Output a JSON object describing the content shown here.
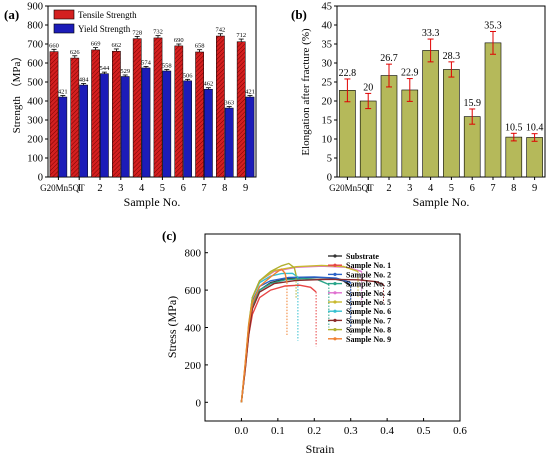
{
  "panels": {
    "a": "(a)",
    "b": "(b)",
    "c": "(c)"
  },
  "colors": {
    "tensile": "#d42020",
    "yield": "#1c1cb8",
    "elongation": "#b5b95a",
    "errorbar": "#e00000"
  },
  "chart_data": [
    {
      "type": "bar",
      "panel": "(a)",
      "categories": [
        "G20Mn5QT",
        "1",
        "2",
        "3",
        "4",
        "5",
        "6",
        "7",
        "8",
        "9"
      ],
      "series": [
        {
          "name": "Tensile Strength",
          "values": [
            660,
            626,
            669,
            662,
            728,
            732,
            690,
            658,
            742,
            712
          ],
          "errors": [
            12,
            12,
            12,
            12,
            12,
            12,
            10,
            12,
            12,
            14
          ]
        },
        {
          "name": "Yield Strength",
          "values": [
            421,
            484,
            544,
            529,
            574,
            558,
            506,
            462,
            363,
            421
          ],
          "errors": [
            8,
            8,
            8,
            8,
            8,
            8,
            8,
            8,
            8,
            8
          ]
        }
      ],
      "data_labels": {
        "tensile": [
          "660",
          "626",
          "669",
          "662",
          "728",
          "732",
          "690",
          "658",
          "742",
          "712"
        ],
        "yield": [
          "421",
          "484",
          "544",
          "529",
          "574",
          "558",
          "506",
          "462",
          "363",
          "421"
        ]
      },
      "xlabel": "Sample No.",
      "ylabel": "Strength （MPa）",
      "ylim": [
        0,
        900
      ],
      "yticks": [
        0,
        100,
        200,
        300,
        400,
        500,
        600,
        700,
        800,
        900
      ],
      "legend": "top-left"
    },
    {
      "type": "bar",
      "panel": "(b)",
      "categories": [
        "G20Mn5QT",
        "1",
        "2",
        "3",
        "4",
        "5",
        "6",
        "7",
        "8",
        "9"
      ],
      "values": [
        22.8,
        20,
        26.7,
        22.9,
        33.3,
        28.3,
        15.9,
        35.3,
        10.5,
        10.4
      ],
      "errors": [
        3.0,
        2.0,
        3.0,
        3.0,
        3.0,
        2.0,
        2.0,
        3.0,
        1.0,
        1.0
      ],
      "data_labels": [
        "22.8",
        "20",
        "26.7",
        "22.9",
        "33.3",
        "28.3",
        "15.9",
        "35.3",
        "10.5",
        "10.4"
      ],
      "xlabel": "Sample No.",
      "ylabel": "Elongation after fracture (%)",
      "ylim": [
        0,
        45
      ],
      "yticks": [
        0,
        5,
        10,
        15,
        20,
        25,
        30,
        35,
        40,
        45
      ]
    },
    {
      "type": "line",
      "panel": "(c)",
      "xlabel": "Strain",
      "ylabel": "Stress (MPa)",
      "xlim": [
        -0.1,
        0.6
      ],
      "ylim": [
        -100,
        900
      ],
      "xticks": [
        "0.0",
        "0.1",
        "0.2",
        "0.3",
        "0.4",
        "0.5",
        "0.6"
      ],
      "yticks": [
        "0",
        "200",
        "400",
        "600",
        "800"
      ],
      "legend": "top-right",
      "series": [
        {
          "name": "Substrate",
          "color": "#333333",
          "points": [
            [
              0,
              0
            ],
            [
              0.01,
              180
            ],
            [
              0.02,
              380
            ],
            [
              0.03,
              520
            ],
            [
              0.05,
              600
            ],
            [
              0.08,
              640
            ],
            [
              0.12,
              660
            ],
            [
              0.18,
              668
            ],
            [
              0.24,
              665
            ],
            [
              0.28,
              650
            ],
            [
              0.3,
              620
            ]
          ],
          "fracture": [
            0.3,
            360
          ]
        },
        {
          "name": "Sample No. 1",
          "color": "#e84545",
          "points": [
            [
              0,
              0
            ],
            [
              0.01,
              170
            ],
            [
              0.02,
              360
            ],
            [
              0.03,
              470
            ],
            [
              0.05,
              560
            ],
            [
              0.08,
              600
            ],
            [
              0.12,
              622
            ],
            [
              0.16,
              626
            ],
            [
              0.19,
              615
            ],
            [
              0.205,
              590
            ]
          ],
          "fracture": [
            0.205,
            300
          ]
        },
        {
          "name": "Sample No. 2",
          "color": "#2a62c8",
          "points": [
            [
              0,
              0
            ],
            [
              0.01,
              180
            ],
            [
              0.02,
              390
            ],
            [
              0.03,
              540
            ],
            [
              0.05,
              620
            ],
            [
              0.08,
              650
            ],
            [
              0.13,
              668
            ],
            [
              0.2,
              670
            ],
            [
              0.26,
              664
            ],
            [
              0.3,
              640
            ]
          ],
          "fracture": [
            0.3,
            400
          ]
        },
        {
          "name": "Sample No. 3",
          "color": "#2aa58a",
          "points": [
            [
              0,
              0
            ],
            [
              0.01,
              180
            ],
            [
              0.02,
              380
            ],
            [
              0.03,
              520
            ],
            [
              0.05,
              600
            ],
            [
              0.08,
              635
            ],
            [
              0.12,
              655
            ],
            [
              0.17,
              662
            ],
            [
              0.21,
              655
            ],
            [
              0.24,
              630
            ]
          ],
          "fracture": [
            0.24,
            400
          ]
        },
        {
          "name": "Sample No. 4",
          "color": "#e070d0",
          "points": [
            [
              0,
              0
            ],
            [
              0.01,
              190
            ],
            [
              0.02,
              400
            ],
            [
              0.03,
              560
            ],
            [
              0.05,
              650
            ],
            [
              0.09,
              700
            ],
            [
              0.15,
              722
            ],
            [
              0.22,
              728
            ],
            [
              0.29,
              722
            ],
            [
              0.33,
              700
            ]
          ],
          "fracture": [
            0.33,
            520
          ]
        },
        {
          "name": "Sample No. 5",
          "color": "#c9b92e",
          "points": [
            [
              0,
              0
            ],
            [
              0.01,
              190
            ],
            [
              0.02,
              410
            ],
            [
              0.03,
              560
            ],
            [
              0.05,
              650
            ],
            [
              0.09,
              705
            ],
            [
              0.15,
              725
            ],
            [
              0.22,
              732
            ],
            [
              0.28,
              726
            ],
            [
              0.32,
              700
            ]
          ],
          "fracture": [
            0.32,
            560
          ]
        },
        {
          "name": "Sample No. 6",
          "color": "#35c0d0",
          "points": [
            [
              0,
              0
            ],
            [
              0.01,
              190
            ],
            [
              0.02,
              400
            ],
            [
              0.03,
              560
            ],
            [
              0.05,
              640
            ],
            [
              0.08,
              675
            ],
            [
              0.11,
              688
            ],
            [
              0.14,
              690
            ],
            [
              0.155,
              670
            ]
          ],
          "fracture": [
            0.155,
            330
          ]
        },
        {
          "name": "Sample No. 7",
          "color": "#8b2a2a",
          "points": [
            [
              0,
              0
            ],
            [
              0.01,
              170
            ],
            [
              0.02,
              360
            ],
            [
              0.03,
              500
            ],
            [
              0.05,
              590
            ],
            [
              0.09,
              635
            ],
            [
              0.15,
              652
            ],
            [
              0.24,
              658
            ],
            [
              0.32,
              655
            ],
            [
              0.37,
              645
            ],
            [
              0.39,
              630
            ]
          ],
          "fracture": [
            0.39,
            530
          ]
        },
        {
          "name": "Sample No. 8",
          "color": "#b0b030",
          "points": [
            [
              0,
              0
            ],
            [
              0.01,
              200
            ],
            [
              0.02,
              420
            ],
            [
              0.03,
              560
            ],
            [
              0.05,
              650
            ],
            [
              0.08,
              700
            ],
            [
              0.11,
              730
            ],
            [
              0.13,
              742
            ],
            [
              0.145,
              720
            ],
            [
              0.15,
              680
            ]
          ],
          "fracture": [
            0.15,
            560
          ]
        },
        {
          "name": "Sample No. 9",
          "color": "#f08030",
          "points": [
            [
              0,
              0
            ],
            [
              0.01,
              200
            ],
            [
              0.02,
              410
            ],
            [
              0.03,
              530
            ],
            [
              0.05,
              620
            ],
            [
              0.08,
              670
            ],
            [
              0.1,
              700
            ],
            [
              0.11,
              712
            ],
            [
              0.12,
              690
            ],
            [
              0.125,
              640
            ]
          ],
          "fracture": [
            0.125,
            360
          ]
        }
      ]
    }
  ]
}
